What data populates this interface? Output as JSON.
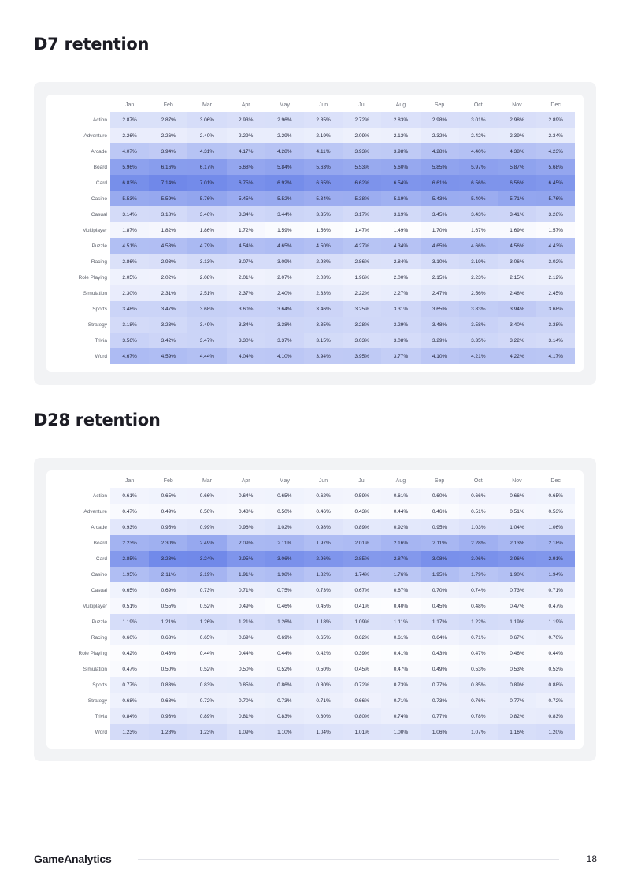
{
  "sections": [
    {
      "title": "D7 retention"
    },
    {
      "title": "D28 retention"
    }
  ],
  "footer": {
    "logo": "GameAnalytics",
    "page_number": "18"
  },
  "colors": {
    "scale_low": "#ffffff",
    "scale_high": "#6e87e9",
    "panel": "#f2f3f5"
  },
  "chart_data": [
    {
      "type": "heatmap",
      "title": "D7 retention",
      "x": [
        "Jan",
        "Feb",
        "Mar",
        "Apr",
        "May",
        "Jun",
        "Jul",
        "Aug",
        "Sep",
        "Oct",
        "Nov",
        "Dec"
      ],
      "y": [
        "Action",
        "Adventure",
        "Arcade",
        "Board",
        "Card",
        "Casino",
        "Casual",
        "Multiplayer",
        "Puzzle",
        "Racing",
        "Role Playing",
        "Simulation",
        "Sports",
        "Strategy",
        "Trivia",
        "Word"
      ],
      "unit": "%",
      "value_range": [
        1.4,
        7.2
      ],
      "values": [
        [
          2.87,
          2.87,
          3.06,
          2.93,
          2.96,
          2.85,
          2.72,
          2.83,
          2.98,
          3.01,
          2.98,
          2.89
        ],
        [
          2.26,
          2.26,
          2.4,
          2.29,
          2.29,
          2.19,
          2.09,
          2.13,
          2.32,
          2.42,
          2.39,
          2.34
        ],
        [
          4.07,
          3.94,
          4.31,
          4.17,
          4.28,
          4.11,
          3.93,
          3.98,
          4.28,
          4.4,
          4.38,
          4.23
        ],
        [
          5.96,
          6.16,
          6.17,
          5.68,
          5.84,
          5.63,
          5.53,
          5.6,
          5.85,
          5.97,
          5.87,
          5.68
        ],
        [
          6.83,
          7.14,
          7.01,
          6.75,
          6.92,
          6.65,
          6.62,
          6.54,
          6.61,
          6.56,
          6.56,
          6.45
        ],
        [
          5.53,
          5.59,
          5.76,
          5.45,
          5.52,
          5.34,
          5.38,
          5.19,
          5.43,
          5.4,
          5.71,
          5.76
        ],
        [
          3.14,
          3.18,
          3.46,
          3.34,
          3.44,
          3.35,
          3.17,
          3.19,
          3.45,
          3.43,
          3.41,
          3.26
        ],
        [
          1.87,
          1.82,
          1.86,
          1.72,
          1.59,
          1.56,
          1.47,
          1.49,
          1.7,
          1.67,
          1.69,
          1.57
        ],
        [
          4.51,
          4.53,
          4.79,
          4.54,
          4.65,
          4.5,
          4.27,
          4.34,
          4.65,
          4.66,
          4.56,
          4.43
        ],
        [
          2.86,
          2.93,
          3.13,
          3.07,
          3.09,
          2.98,
          2.86,
          2.84,
          3.1,
          3.19,
          3.06,
          3.02
        ],
        [
          2.05,
          2.02,
          2.08,
          2.01,
          2.07,
          2.03,
          1.96,
          2.0,
          2.15,
          2.23,
          2.15,
          2.12
        ],
        [
          2.3,
          2.31,
          2.51,
          2.37,
          2.4,
          2.33,
          2.22,
          2.27,
          2.47,
          2.56,
          2.48,
          2.45
        ],
        [
          3.48,
          3.47,
          3.68,
          3.6,
          3.64,
          3.46,
          3.25,
          3.31,
          3.65,
          3.83,
          3.94,
          3.68
        ],
        [
          3.18,
          3.23,
          3.49,
          3.34,
          3.38,
          3.35,
          3.28,
          3.29,
          3.48,
          3.58,
          3.4,
          3.38
        ],
        [
          3.56,
          3.42,
          3.47,
          3.3,
          3.37,
          3.15,
          3.03,
          3.08,
          3.29,
          3.35,
          3.22,
          3.14
        ],
        [
          4.67,
          4.59,
          4.44,
          4.04,
          4.1,
          3.94,
          3.95,
          3.77,
          4.1,
          4.21,
          4.22,
          4.17
        ]
      ]
    },
    {
      "type": "heatmap",
      "title": "D28 retention",
      "x": [
        "Jan",
        "Feb",
        "Mar",
        "Apr",
        "May",
        "Jun",
        "Jul",
        "Aug",
        "Sep",
        "Oct",
        "Nov",
        "Dec"
      ],
      "y": [
        "Action",
        "Adventure",
        "Arcade",
        "Board",
        "Card",
        "Casino",
        "Casual",
        "Multiplayer",
        "Puzzle",
        "Racing",
        "Role Playing",
        "Simulation",
        "Sports",
        "Strategy",
        "Trivia",
        "Word"
      ],
      "unit": "%",
      "value_range": [
        0.35,
        3.3
      ],
      "values": [
        [
          0.61,
          0.65,
          0.66,
          0.64,
          0.65,
          0.62,
          0.59,
          0.61,
          0.6,
          0.66,
          0.66,
          0.65
        ],
        [
          0.47,
          0.49,
          0.5,
          0.48,
          0.5,
          0.46,
          0.43,
          0.44,
          0.46,
          0.51,
          0.51,
          0.53
        ],
        [
          0.93,
          0.95,
          0.99,
          0.96,
          1.02,
          0.98,
          0.89,
          0.92,
          0.95,
          1.03,
          1.04,
          1.06
        ],
        [
          2.23,
          2.3,
          2.49,
          2.09,
          2.11,
          1.97,
          2.01,
          2.16,
          2.11,
          2.28,
          2.13,
          2.18
        ],
        [
          2.85,
          3.23,
          3.24,
          2.95,
          3.06,
          2.96,
          2.85,
          2.87,
          3.08,
          3.06,
          2.96,
          2.91
        ],
        [
          1.95,
          2.11,
          2.19,
          1.91,
          1.98,
          1.82,
          1.74,
          1.76,
          1.95,
          1.79,
          1.9,
          1.94
        ],
        [
          0.65,
          0.69,
          0.73,
          0.71,
          0.75,
          0.73,
          0.67,
          0.67,
          0.7,
          0.74,
          0.73,
          0.71
        ],
        [
          0.51,
          0.55,
          0.52,
          0.49,
          0.46,
          0.45,
          0.41,
          0.4,
          0.45,
          0.48,
          0.47,
          0.47
        ],
        [
          1.19,
          1.21,
          1.26,
          1.21,
          1.26,
          1.18,
          1.09,
          1.11,
          1.17,
          1.22,
          1.19,
          1.19
        ],
        [
          0.6,
          0.63,
          0.65,
          0.69,
          0.69,
          0.65,
          0.62,
          0.61,
          0.64,
          0.71,
          0.67,
          0.7
        ],
        [
          0.42,
          0.43,
          0.44,
          0.44,
          0.44,
          0.42,
          0.39,
          0.41,
          0.43,
          0.47,
          0.46,
          0.44
        ],
        [
          0.47,
          0.5,
          0.52,
          0.5,
          0.52,
          0.5,
          0.45,
          0.47,
          0.49,
          0.53,
          0.53,
          0.53
        ],
        [
          0.77,
          0.83,
          0.83,
          0.85,
          0.86,
          0.8,
          0.72,
          0.73,
          0.77,
          0.85,
          0.89,
          0.88
        ],
        [
          0.68,
          0.68,
          0.72,
          0.7,
          0.73,
          0.71,
          0.66,
          0.71,
          0.73,
          0.76,
          0.77,
          0.72
        ],
        [
          0.84,
          0.93,
          0.89,
          0.81,
          0.83,
          0.8,
          0.8,
          0.74,
          0.77,
          0.78,
          0.82,
          0.83
        ],
        [
          1.23,
          1.28,
          1.23,
          1.09,
          1.1,
          1.04,
          1.01,
          1.0,
          1.06,
          1.07,
          1.16,
          1.2
        ]
      ]
    }
  ]
}
